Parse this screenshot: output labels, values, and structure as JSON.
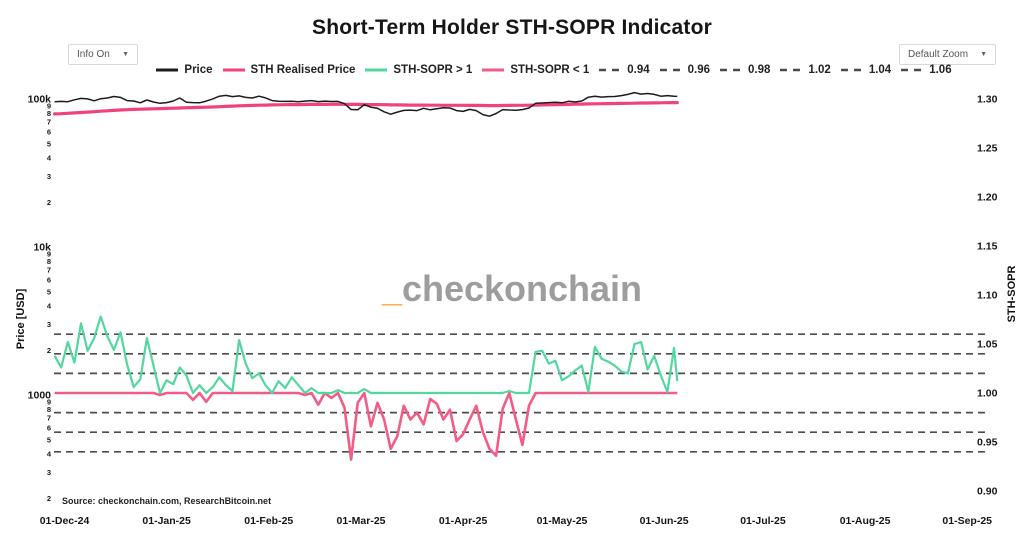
{
  "title": "Short-Term Holder STH-SOPR Indicator",
  "controls": {
    "info_dropdown": "Info On",
    "zoom_dropdown": "Default Zoom",
    "dropdown_arrow": "▼"
  },
  "watermark": {
    "underscore": "_",
    "text": "checkonchain"
  },
  "source": "Source: checkonchain.com, ResearchBitcoin.net",
  "legend": {
    "items": [
      {
        "label": "Price",
        "color": "#1c1c1c",
        "style": "solid"
      },
      {
        "label": "STH Realised Price",
        "color": "#f0437c",
        "style": "solid"
      },
      {
        "label": "STH-SOPR > 1",
        "color": "#52d79e",
        "style": "solid"
      },
      {
        "label": "STH-SOPR < 1",
        "color": "#f25c86",
        "style": "solid"
      },
      {
        "label": "0.94",
        "color": "#4a4a4a",
        "style": "dashed"
      },
      {
        "label": "0.96",
        "color": "#4a4a4a",
        "style": "dashed"
      },
      {
        "label": "0.98",
        "color": "#4a4a4a",
        "style": "dashed"
      },
      {
        "label": "1.02",
        "color": "#4a4a4a",
        "style": "dashed"
      },
      {
        "label": "1.04",
        "color": "#4a4a4a",
        "style": "dashed"
      },
      {
        "label": "1.06",
        "color": "#4a4a4a",
        "style": "dashed"
      }
    ]
  },
  "chart_data": {
    "type": "line",
    "title": "Short-Term Holder STH-SOPR Indicator",
    "style": {
      "grid_color": "#4d4d4d",
      "price_color": "#1c1c1c",
      "realised_color": "#f0437c",
      "sopr_above_color": "#52d79e",
      "sopr_below_color": "#f25c86"
    },
    "x_axis": {
      "start_date": "2024-12-01",
      "ticks": [
        {
          "label": "01-Dec-24",
          "day": 0
        },
        {
          "label": "01-Jan-25",
          "day": 31
        },
        {
          "label": "01-Feb-25",
          "day": 62
        },
        {
          "label": "01-Mar-25",
          "day": 90
        },
        {
          "label": "01-Apr-25",
          "day": 121
        },
        {
          "label": "01-May-25",
          "day": 151
        },
        {
          "label": "01-Jun-25",
          "day": 182
        },
        {
          "label": "01-Jul-25",
          "day": 212
        },
        {
          "label": "01-Aug-25",
          "day": 243
        },
        {
          "label": "01-Sep-25",
          "day": 274
        }
      ]
    },
    "left_axis": {
      "title": "Price [USD]",
      "scale": "log",
      "decades": [
        {
          "value": 100000,
          "label": "100k"
        },
        {
          "value": 10000,
          "label": "10k"
        },
        {
          "value": 1000,
          "label": "1000"
        }
      ],
      "minor_digits": [
        9,
        8,
        7,
        6,
        5,
        4,
        3,
        2
      ]
    },
    "right_axis": {
      "title": "STH-SOPR",
      "ticks": [
        1.3,
        1.25,
        1.2,
        1.15,
        1.1,
        1.05,
        1.0,
        0.95,
        0.9
      ]
    },
    "sopr_gridlines": [
      0.94,
      0.96,
      0.98,
      1.02,
      1.04,
      1.06
    ],
    "days": [
      -3,
      -1,
      1,
      3,
      5,
      7,
      9,
      11,
      13,
      15,
      17,
      19,
      21,
      23,
      25,
      27,
      29,
      31,
      33,
      35,
      37,
      39,
      41,
      43,
      45,
      47,
      49,
      51,
      53,
      55,
      57,
      59,
      61,
      63,
      65,
      67,
      69,
      71,
      73,
      75,
      77,
      79,
      81,
      83,
      85,
      87,
      89,
      91,
      93,
      95,
      97,
      99,
      101,
      103,
      105,
      107,
      109,
      111,
      113,
      115,
      117,
      119,
      121,
      123,
      125,
      127,
      129,
      131,
      133,
      135,
      137,
      139,
      141,
      143,
      145,
      147,
      149,
      151,
      153,
      155,
      157,
      159,
      161,
      163,
      165,
      167,
      169,
      171,
      173,
      175,
      177,
      179,
      181,
      183,
      185,
      186
    ],
    "series": [
      {
        "name": "Price",
        "axis": "price",
        "unit": "kUSD",
        "values": [
          95.9,
          96.4,
          95.9,
          98.7,
          101.0,
          100.1,
          97.2,
          100.4,
          101.5,
          104.0,
          102.5,
          97.5,
          97.0,
          94.3,
          98.5,
          95.5,
          93.6,
          94.5,
          97.0,
          101.5,
          95.2,
          94.6,
          94.3,
          96.8,
          100.2,
          104.5,
          105.8,
          103.8,
          104.9,
          102.5,
          101.5,
          104.5,
          101.8,
          97.6,
          96.5,
          96.4,
          96.7,
          95.8,
          96.8,
          97.5,
          96.0,
          96.8,
          96.2,
          96.4,
          93.0,
          84.9,
          84.5,
          91.5,
          88.0,
          86.5,
          82.0,
          79.0,
          81.5,
          83.8,
          84.2,
          83.5,
          86.5,
          84.5,
          86.0,
          87.4,
          87.0,
          83.5,
          82.5,
          85.0,
          83.5,
          78.5,
          76.5,
          79.8,
          84.8,
          84.3,
          84.0,
          84.8,
          87.0,
          93.5,
          94.0,
          94.5,
          95.0,
          94.3,
          96.5,
          95.5,
          97.0,
          102.8,
          104.5,
          103.0,
          103.8,
          104.0,
          105.5,
          107.5,
          110.5,
          108.0,
          109.0,
          107.5,
          104.5,
          105.5,
          104.5,
          104.2
        ]
      },
      {
        "name": "STH Realised Price",
        "axis": "price",
        "unit": "kUSD",
        "values": [
          79.3,
          79.6,
          80.0,
          80.5,
          81.0,
          81.6,
          82.1,
          82.7,
          83.2,
          83.8,
          84.3,
          84.7,
          85.0,
          85.3,
          85.6,
          85.9,
          86.1,
          86.4,
          86.7,
          87.0,
          87.3,
          87.5,
          87.7,
          88.0,
          88.3,
          88.7,
          89.1,
          89.5,
          89.9,
          90.2,
          90.5,
          90.8,
          91.0,
          91.2,
          91.4,
          91.5,
          91.6,
          91.7,
          91.8,
          91.9,
          92.0,
          92.0,
          92.1,
          92.1,
          92.1,
          92.0,
          91.9,
          91.8,
          91.7,
          91.6,
          91.5,
          91.3,
          91.2,
          91.1,
          91.0,
          90.9,
          90.9,
          90.8,
          90.8,
          90.7,
          90.7,
          90.6,
          90.6,
          90.5,
          90.5,
          90.4,
          90.3,
          90.3,
          90.4,
          90.5,
          90.6,
          90.7,
          90.8,
          91.0,
          91.2,
          91.4,
          91.6,
          91.8,
          92.0,
          92.2,
          92.4,
          92.6,
          92.8,
          93.0,
          93.1,
          93.3,
          93.4,
          93.6,
          93.7,
          93.9,
          94.0,
          94.1,
          94.3,
          94.4,
          94.5,
          94.5
        ]
      },
      {
        "name": "STH-SOPR",
        "axis": "sopr",
        "clamp": 1.0,
        "values": [
          1.038,
          1.026,
          1.052,
          1.031,
          1.071,
          1.043,
          1.056,
          1.078,
          1.058,
          1.044,
          1.062,
          1.029,
          1.006,
          1.014,
          1.056,
          1.028,
          0.998,
          1.013,
          1.009,
          1.026,
          1.018,
          0.993,
          1.008,
          0.991,
          1.006,
          1.016,
          1.008,
          1.002,
          1.054,
          1.03,
          1.015,
          1.02,
          1.008,
          1.0,
          1.012,
          1.005,
          1.016,
          1.008,
          0.998,
          1.005,
          0.988,
          1.0,
          0.995,
          1.003,
          0.985,
          0.932,
          0.99,
          1.004,
          0.966,
          0.99,
          0.973,
          0.943,
          0.956,
          0.987,
          0.973,
          0.98,
          0.968,
          0.994,
          0.989,
          0.973,
          0.983,
          0.951,
          0.958,
          0.973,
          0.987,
          0.96,
          0.943,
          0.936,
          0.984,
          1.002,
          0.973,
          0.947,
          0.987,
          1.042,
          1.043,
          1.03,
          1.033,
          1.013,
          1.017,
          1.023,
          1.028,
          1.001,
          1.047,
          1.035,
          1.032,
          1.028,
          1.022,
          1.02,
          1.05,
          1.052,
          1.024,
          1.038,
          1.018,
          1.001,
          1.046,
          1.012
        ]
      }
    ]
  }
}
